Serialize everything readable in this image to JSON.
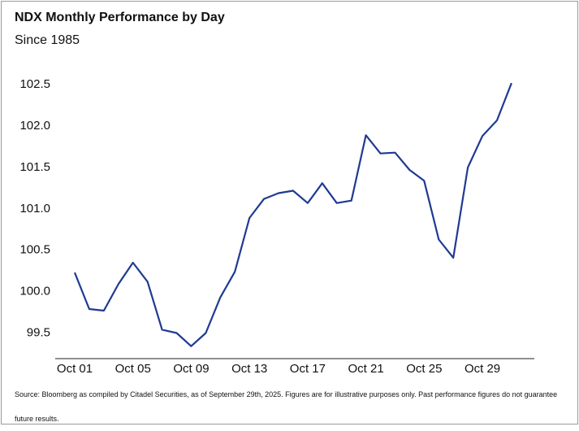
{
  "chart_data": {
    "type": "line",
    "title": "NDX Monthly Performance by Day",
    "subtitle": "Since 1985",
    "source": "Source: Bloomberg as compiled by Citadel Securities, as of September 29th, 2025. Figures are for illustrative purposes only. Past performance figures do not guarantee future results.",
    "categories": [
      "Oct 01",
      null,
      null,
      null,
      "Oct 05",
      null,
      null,
      null,
      "Oct 09",
      null,
      null,
      null,
      "Oct 13",
      null,
      null,
      null,
      "Oct 17",
      null,
      null,
      null,
      "Oct 21",
      null,
      null,
      null,
      "Oct 25",
      null,
      null,
      null,
      "Oct 29",
      null,
      null
    ],
    "values": [
      100.23,
      99.79,
      99.77,
      100.09,
      100.35,
      100.12,
      99.54,
      99.5,
      99.34,
      99.5,
      99.93,
      100.24,
      100.89,
      101.12,
      101.19,
      101.22,
      101.07,
      101.31,
      101.07,
      101.1,
      101.89,
      101.67,
      101.68,
      101.47,
      101.34,
      100.63,
      100.41,
      101.5,
      101.88,
      102.07,
      102.52
    ],
    "color": "#1f3a93",
    "ylim": [
      99.19,
      102.64
    ],
    "yticks": [
      99.5,
      {
        "value": 100,
        "label": "100.0"
      },
      100.5,
      {
        "value": 101,
        "label": "101.0"
      },
      101.5,
      {
        "value": 102,
        "label": "102.0"
      },
      102.5
    ],
    "grid": false
  }
}
